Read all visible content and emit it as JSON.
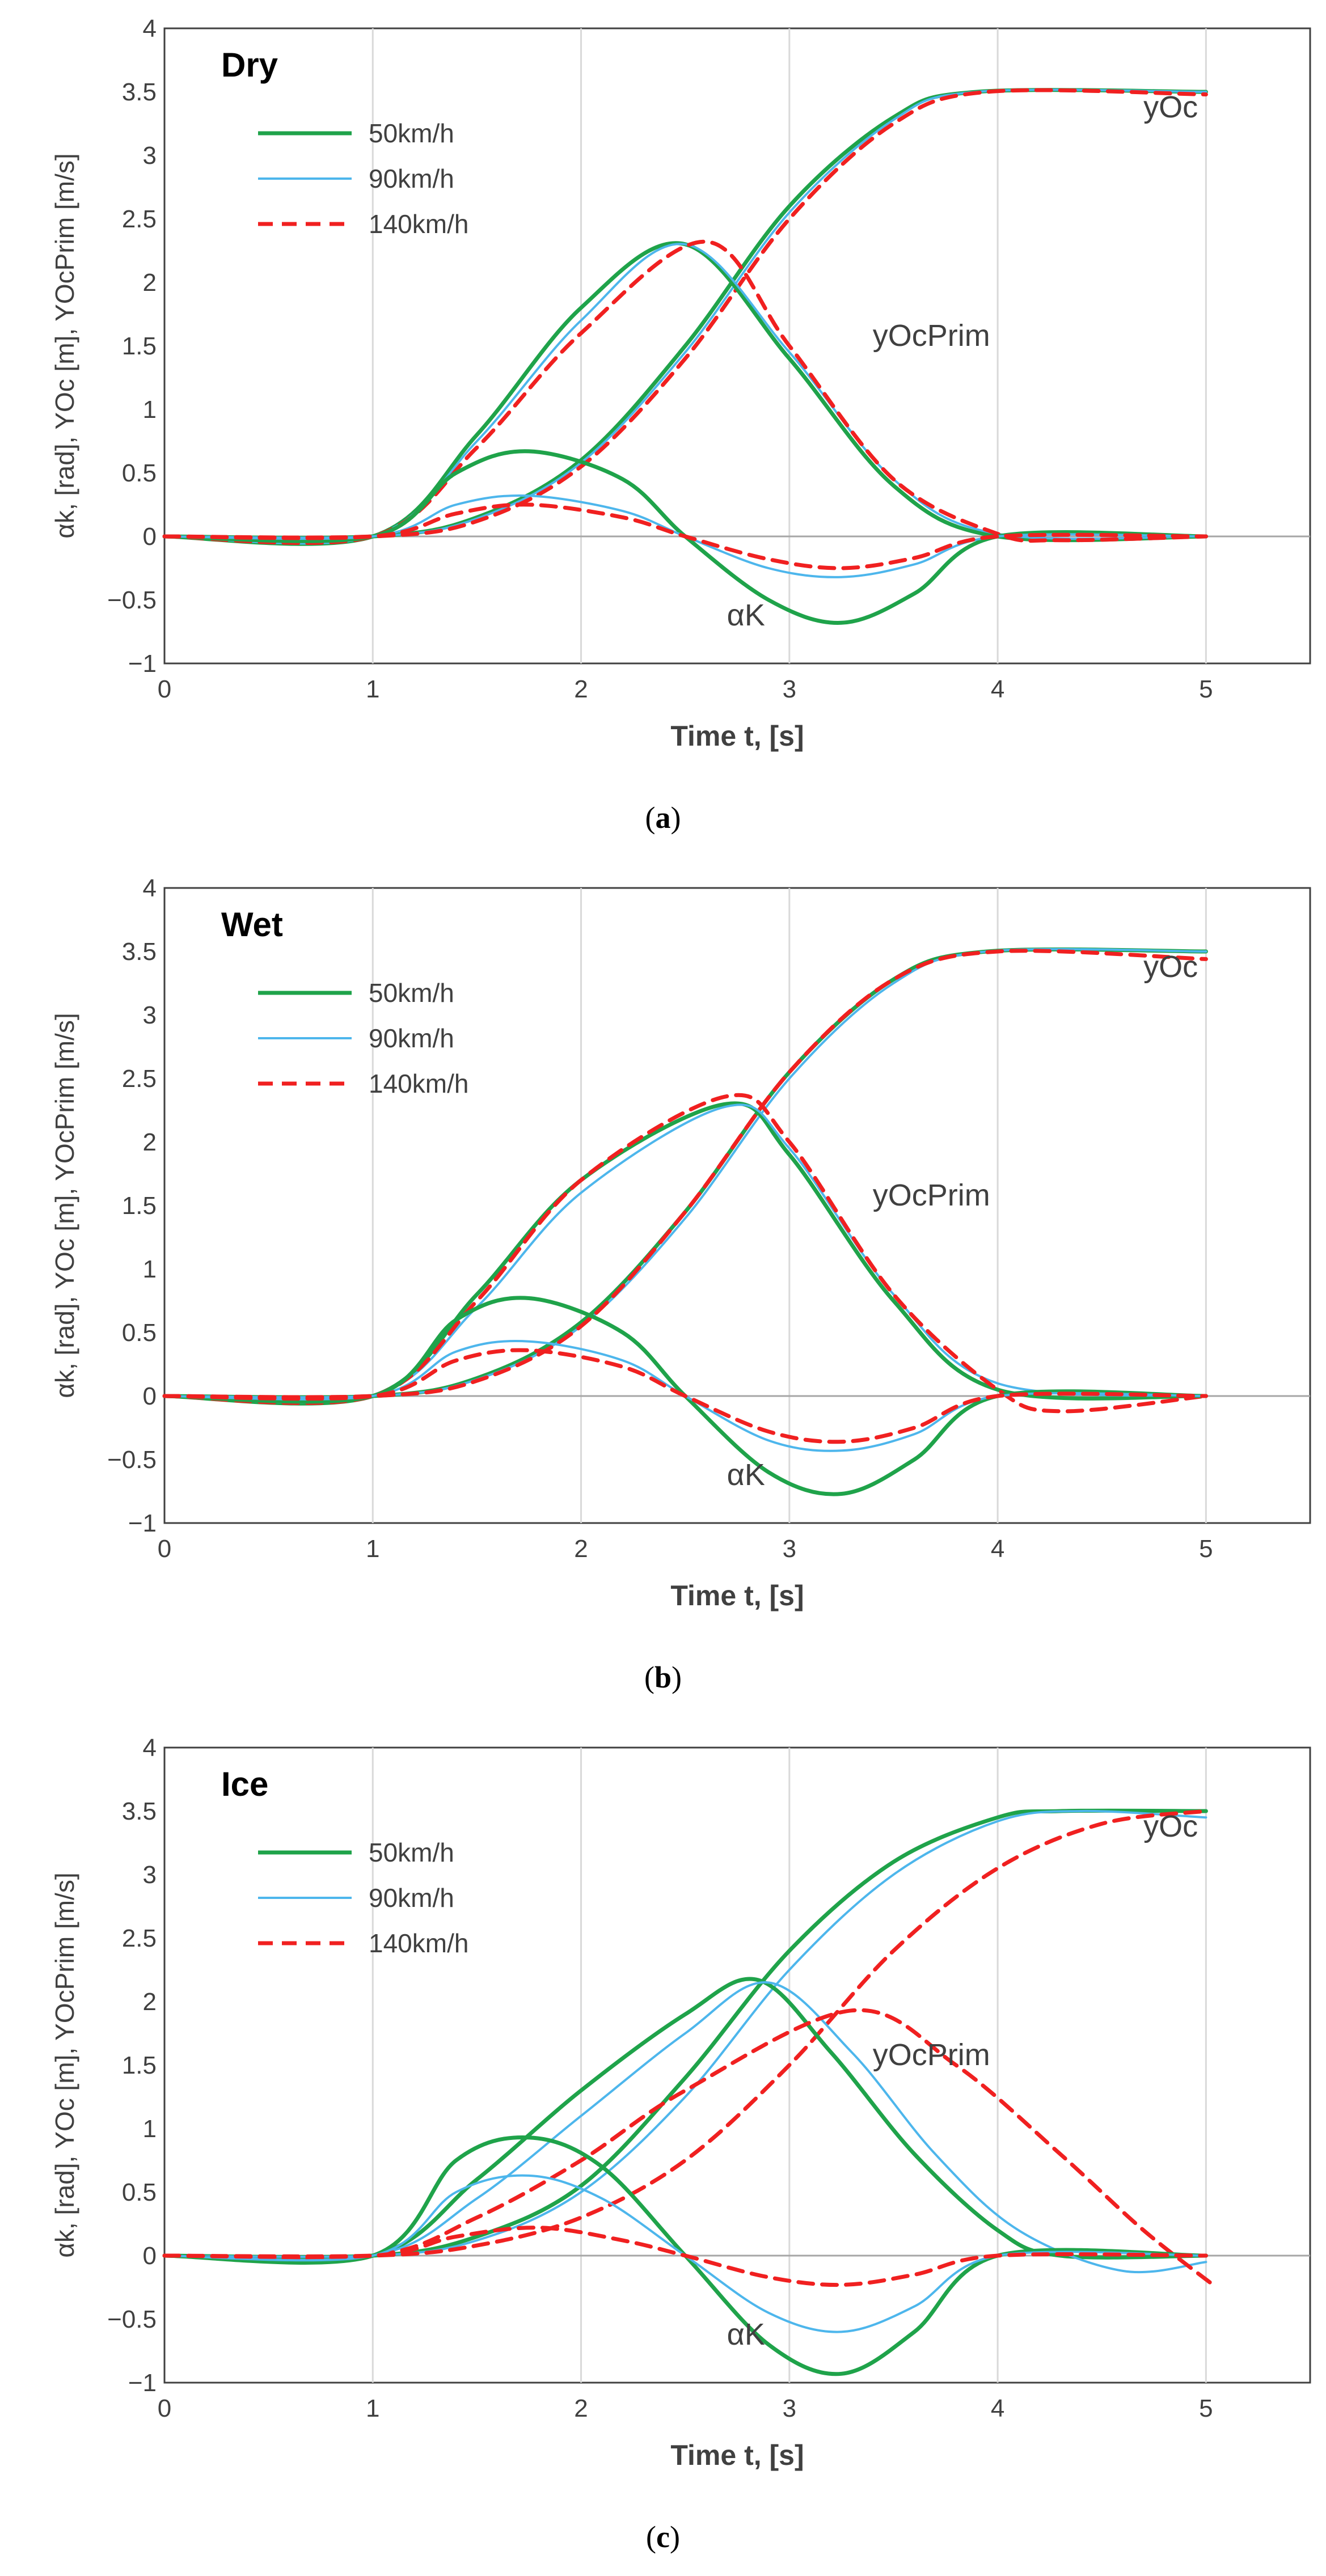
{
  "chart_data": [
    {
      "type": "line",
      "condition": "Dry",
      "caption_letter": "a",
      "xlabel": "Time t, [s]",
      "ylabel": "αk, [rad], YOc [m], YOcPrim [m/s]",
      "xlim": [
        0,
        5.5
      ],
      "ylim": [
        -1,
        4
      ],
      "xticks": [
        "0",
        "1",
        "2",
        "3",
        "4",
        "5"
      ],
      "yticks": [
        "−1",
        "−0.5",
        "0",
        "0.5",
        "1",
        "1.5",
        "2",
        "2.5",
        "3",
        "3.5",
        "4"
      ],
      "legend": [
        "50km/h",
        "90km/h",
        "140km/h"
      ],
      "annotations": {
        "y": "yOc",
        "yprim": "yOcPrim",
        "alpha": "αK"
      },
      "series": [
        {
          "name": "50km/h",
          "quantity": "yOc",
          "x": [
            0,
            1,
            1.5,
            2,
            2.5,
            3,
            3.5,
            3.9,
            5
          ],
          "y": [
            0,
            0,
            0.15,
            0.6,
            1.5,
            2.6,
            3.3,
            3.5,
            3.5
          ]
        },
        {
          "name": "90km/h",
          "quantity": "yOc",
          "x": [
            0,
            1,
            1.5,
            2,
            2.5,
            3,
            3.5,
            3.9,
            5
          ],
          "y": [
            0,
            0,
            0.14,
            0.58,
            1.45,
            2.55,
            3.28,
            3.5,
            3.5
          ]
        },
        {
          "name": "140km/h",
          "quantity": "yOc",
          "x": [
            0,
            1,
            1.5,
            2,
            2.5,
            3,
            3.5,
            3.95,
            5
          ],
          "y": [
            0,
            0,
            0.12,
            0.55,
            1.4,
            2.5,
            3.25,
            3.5,
            3.48
          ]
        },
        {
          "name": "50km/h",
          "quantity": "yOcPrim",
          "x": [
            0,
            1,
            1.5,
            2,
            2.5,
            3,
            3.5,
            4,
            5
          ],
          "y": [
            0,
            0,
            0.8,
            1.8,
            2.3,
            1.4,
            0.4,
            0,
            0
          ]
        },
        {
          "name": "90km/h",
          "quantity": "yOcPrim",
          "x": [
            0,
            1,
            1.5,
            2,
            2.5,
            3,
            3.5,
            4,
            5
          ],
          "y": [
            0,
            0,
            0.75,
            1.7,
            2.3,
            1.45,
            0.45,
            0.02,
            0
          ]
        },
        {
          "name": "140km/h",
          "quantity": "yOcPrim",
          "x": [
            0,
            1,
            1.5,
            2,
            2.6,
            3,
            3.5,
            4,
            4.3,
            5
          ],
          "y": [
            0,
            0,
            0.7,
            1.6,
            2.32,
            1.5,
            0.45,
            0.02,
            -0.03,
            0
          ]
        },
        {
          "name": "50km/h",
          "quantity": "αK",
          "x": [
            0,
            1,
            1.4,
            1.75,
            2.2,
            2.5,
            2.9,
            3.25,
            3.6,
            4,
            5
          ],
          "y": [
            0,
            0,
            0.5,
            0.67,
            0.45,
            0,
            -0.5,
            -0.68,
            -0.45,
            0,
            0
          ]
        },
        {
          "name": "90km/h",
          "quantity": "αK",
          "x": [
            0,
            1,
            1.4,
            1.75,
            2.2,
            2.5,
            2.9,
            3.25,
            3.6,
            4,
            5
          ],
          "y": [
            0,
            0,
            0.25,
            0.32,
            0.2,
            0,
            -0.25,
            -0.32,
            -0.22,
            0,
            0
          ]
        },
        {
          "name": "140km/h",
          "quantity": "αK",
          "x": [
            0,
            1,
            1.4,
            1.75,
            2.2,
            2.5,
            2.9,
            3.25,
            3.6,
            4,
            5
          ],
          "y": [
            0,
            0,
            0.18,
            0.25,
            0.15,
            0,
            -0.18,
            -0.25,
            -0.17,
            0,
            0
          ]
        }
      ]
    },
    {
      "type": "line",
      "condition": "Wet",
      "caption_letter": "b",
      "xlabel": "Time t, [s]",
      "ylabel": "αk, [rad], YOc [m], YOcPrim [m/s]",
      "xlim": [
        0,
        5.5
      ],
      "ylim": [
        -1,
        4
      ],
      "xticks": [
        "0",
        "1",
        "2",
        "3",
        "4",
        "5"
      ],
      "yticks": [
        "−1",
        "−0.5",
        "0",
        "0.5",
        "1",
        "1.5",
        "2",
        "2.5",
        "3",
        "3.5",
        "4"
      ],
      "legend": [
        "50km/h",
        "90km/h",
        "140km/h"
      ],
      "annotations": {
        "y": "yOc",
        "yprim": "yOcPrim",
        "alpha": "αK"
      },
      "series": [
        {
          "name": "50km/h",
          "quantity": "yOc",
          "x": [
            0,
            1,
            1.5,
            2,
            2.5,
            3,
            3.5,
            3.95,
            5
          ],
          "y": [
            0,
            0,
            0.14,
            0.58,
            1.45,
            2.55,
            3.28,
            3.5,
            3.5
          ]
        },
        {
          "name": "90km/h",
          "quantity": "yOc",
          "x": [
            0,
            1,
            1.5,
            2,
            2.5,
            3,
            3.5,
            3.95,
            5
          ],
          "y": [
            0,
            0,
            0.13,
            0.55,
            1.4,
            2.5,
            3.25,
            3.5,
            3.5
          ]
        },
        {
          "name": "140km/h",
          "quantity": "yOc",
          "x": [
            0,
            1,
            1.5,
            2,
            2.5,
            3,
            3.5,
            4,
            5
          ],
          "y": [
            0,
            0,
            0.12,
            0.55,
            1.45,
            2.55,
            3.28,
            3.5,
            3.44
          ]
        },
        {
          "name": "50km/h",
          "quantity": "yOcPrim",
          "x": [
            0,
            1,
            1.5,
            2,
            2.7,
            3,
            3.5,
            4,
            5
          ],
          "y": [
            0,
            0,
            0.8,
            1.7,
            2.3,
            1.9,
            0.75,
            0.05,
            0
          ]
        },
        {
          "name": "90km/h",
          "quantity": "yOcPrim",
          "x": [
            0,
            1,
            1.5,
            2,
            2.7,
            3,
            3.5,
            4,
            5
          ],
          "y": [
            0,
            0,
            0.7,
            1.6,
            2.28,
            1.95,
            0.8,
            0.1,
            0
          ]
        },
        {
          "name": "140km/h",
          "quantity": "yOcPrim",
          "x": [
            0,
            1,
            1.5,
            2,
            2.7,
            3,
            3.5,
            4,
            4.3,
            5
          ],
          "y": [
            0,
            0,
            0.75,
            1.7,
            2.36,
            2.0,
            0.8,
            0.05,
            -0.12,
            0
          ]
        },
        {
          "name": "50km/h",
          "quantity": "αK",
          "x": [
            0,
            1,
            1.4,
            1.75,
            2.2,
            2.5,
            2.9,
            3.25,
            3.6,
            4,
            5
          ],
          "y": [
            0,
            0,
            0.6,
            0.77,
            0.5,
            0,
            -0.6,
            -0.77,
            -0.5,
            0,
            0
          ]
        },
        {
          "name": "90km/h",
          "quantity": "αK",
          "x": [
            0,
            1,
            1.4,
            1.75,
            2.2,
            2.5,
            2.9,
            3.25,
            3.6,
            4,
            5
          ],
          "y": [
            0,
            0,
            0.35,
            0.43,
            0.28,
            0,
            -0.35,
            -0.43,
            -0.3,
            0,
            0
          ]
        },
        {
          "name": "140km/h",
          "quantity": "αK",
          "x": [
            0,
            1,
            1.4,
            1.75,
            2.2,
            2.5,
            2.9,
            3.25,
            3.6,
            4,
            5
          ],
          "y": [
            0,
            0,
            0.28,
            0.36,
            0.23,
            0,
            -0.28,
            -0.36,
            -0.25,
            0,
            0
          ]
        }
      ]
    },
    {
      "type": "line",
      "condition": "Ice",
      "caption_letter": "c",
      "xlabel": "Time t, [s]",
      "ylabel": "αk, [rad], YOc [m], YOcPrim [m/s]",
      "xlim": [
        0,
        5.5
      ],
      "ylim": [
        -1,
        4
      ],
      "xticks": [
        "0",
        "1",
        "2",
        "3",
        "4",
        "5"
      ],
      "yticks": [
        "−1",
        "−0.5",
        "0",
        "0.5",
        "1",
        "1.5",
        "2",
        "2.5",
        "3",
        "3.5",
        "4"
      ],
      "legend": [
        "50km/h",
        "90km/h",
        "140km/h"
      ],
      "annotations": {
        "y": "yOc",
        "yprim": "yOcPrim",
        "alpha": "αK"
      },
      "series": [
        {
          "name": "50km/h",
          "quantity": "yOc",
          "x": [
            0,
            1,
            1.5,
            2,
            2.5,
            3,
            3.5,
            4,
            4.3,
            5
          ],
          "y": [
            0,
            0,
            0.15,
            0.55,
            1.4,
            2.4,
            3.1,
            3.45,
            3.5,
            3.5
          ]
        },
        {
          "name": "90km/h",
          "quantity": "yOc",
          "x": [
            0,
            1,
            1.5,
            2,
            2.5,
            3,
            3.5,
            4,
            4.4,
            5
          ],
          "y": [
            0,
            0,
            0.12,
            0.5,
            1.25,
            2.25,
            3.0,
            3.42,
            3.5,
            3.45
          ]
        },
        {
          "name": "140km/h",
          "quantity": "yOc",
          "x": [
            0,
            1,
            1.5,
            2,
            2.5,
            3,
            3.5,
            4,
            4.5,
            5
          ],
          "y": [
            0,
            0,
            0.08,
            0.3,
            0.75,
            1.5,
            2.4,
            3.05,
            3.4,
            3.5
          ]
        },
        {
          "name": "50km/h",
          "quantity": "yOcPrim",
          "x": [
            0,
            1,
            1.5,
            2,
            2.5,
            2.85,
            3.2,
            3.6,
            4,
            4.3,
            5
          ],
          "y": [
            0,
            0,
            0.6,
            1.3,
            1.9,
            2.17,
            1.6,
            0.8,
            0.2,
            0,
            0
          ]
        },
        {
          "name": "90km/h",
          "quantity": "yOcPrim",
          "x": [
            0,
            1,
            1.5,
            2,
            2.5,
            2.9,
            3.3,
            3.7,
            4.1,
            4.6,
            5
          ],
          "y": [
            0,
            0,
            0.45,
            1.1,
            1.75,
            2.15,
            1.6,
            0.8,
            0.2,
            -0.12,
            -0.05
          ]
        },
        {
          "name": "140km/h",
          "quantity": "yOcPrim",
          "x": [
            0,
            1,
            1.5,
            2,
            2.5,
            3.3,
            3.8,
            4.3,
            4.7,
            5.05
          ],
          "y": [
            0,
            0,
            0.3,
            0.75,
            1.3,
            1.93,
            1.5,
            0.8,
            0.2,
            -0.25
          ]
        },
        {
          "name": "50km/h",
          "quantity": "αK",
          "x": [
            0,
            1,
            1.4,
            1.75,
            2.1,
            2.5,
            2.9,
            3.25,
            3.6,
            4,
            5
          ],
          "y": [
            0,
            0,
            0.75,
            0.93,
            0.7,
            0,
            -0.7,
            -0.93,
            -0.6,
            0,
            0
          ]
        },
        {
          "name": "90km/h",
          "quantity": "αK",
          "x": [
            0,
            1,
            1.4,
            1.75,
            2.1,
            2.5,
            2.9,
            3.25,
            3.6,
            4,
            5
          ],
          "y": [
            0,
            0,
            0.5,
            0.63,
            0.45,
            0,
            -0.45,
            -0.6,
            -0.4,
            0,
            0
          ]
        },
        {
          "name": "140km/h",
          "quantity": "αK",
          "x": [
            0,
            1,
            1.4,
            1.8,
            2.2,
            2.5,
            2.9,
            3.25,
            3.6,
            4,
            5
          ],
          "y": [
            0,
            0,
            0.15,
            0.22,
            0.12,
            0,
            -0.17,
            -0.23,
            -0.15,
            0,
            0
          ]
        }
      ]
    }
  ],
  "colors": {
    "50km/h": "#1fa34a",
    "90km/h": "#4db6ec",
    "140km/h": "#f02020",
    "grid": "#d9d9d9",
    "axis": "#404040"
  }
}
